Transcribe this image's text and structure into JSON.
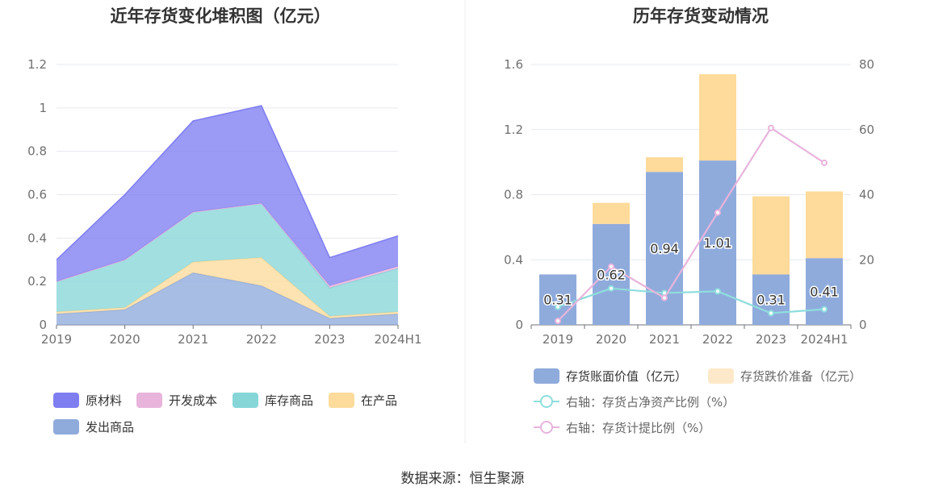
{
  "source_text": "数据来源：恒生聚源",
  "chart_data": [
    {
      "type": "area",
      "stacked": true,
      "title": "近年存货变化堆积图（亿元）",
      "categories": [
        "2019",
        "2020",
        "2021",
        "2022",
        "2023",
        "2024H1"
      ],
      "y_ticks": [
        "0",
        "0.2",
        "0.4",
        "0.6",
        "0.8",
        "1",
        "1.2"
      ],
      "ylim": [
        0,
        1.2
      ],
      "grid": true,
      "legend_position": "bottom",
      "series": [
        {
          "name": "发出商品",
          "color": "#8fabdc",
          "values": [
            0.05,
            0.07,
            0.24,
            0.18,
            0.03,
            0.05
          ]
        },
        {
          "name": "在产品",
          "color": "#fddb9b",
          "values": [
            0.01,
            0.01,
            0.05,
            0.13,
            0.01,
            0.01
          ]
        },
        {
          "name": "库存商品",
          "color": "#86d6d8",
          "values": [
            0.14,
            0.22,
            0.23,
            0.25,
            0.13,
            0.2
          ]
        },
        {
          "name": "开发成本",
          "color": "#e8b4dc",
          "values": [
            0.0,
            0.0,
            0.0,
            0.0,
            0.01,
            0.01
          ]
        },
        {
          "name": "原材料",
          "color": "#7f7ef1",
          "values": [
            0.1,
            0.3,
            0.42,
            0.45,
            0.13,
            0.14
          ]
        }
      ],
      "legend_order": [
        "原材料",
        "开发成本",
        "库存商品",
        "在产品",
        "发出商品"
      ]
    },
    {
      "type": "bar+line",
      "title": "历年存货变动情况",
      "categories": [
        "2019",
        "2020",
        "2021",
        "2022",
        "2023",
        "2024H1"
      ],
      "y_left_ticks": [
        "0",
        "0.4",
        "0.8",
        "1.2",
        "1.6"
      ],
      "y_left_lim": [
        0,
        1.6
      ],
      "y_right_ticks": [
        "0",
        "20",
        "40",
        "60",
        "80"
      ],
      "y_right_lim": [
        0,
        80
      ],
      "grid": true,
      "legend_position": "bottom",
      "bars": [
        {
          "name": "存货账面价值（亿元）",
          "color": "#8fabdc",
          "values": [
            0.31,
            0.62,
            0.94,
            1.01,
            0.31,
            0.41
          ],
          "labels": [
            "0.31",
            "0.62",
            "0.94",
            "1.01",
            "0.31",
            "0.41"
          ]
        },
        {
          "name": "存货跌价准备（亿元）",
          "color": "#fedb9b",
          "legend_color": "#fde9c9",
          "values": [
            0.0,
            0.13,
            0.09,
            0.53,
            0.48,
            0.41
          ]
        }
      ],
      "lines": [
        {
          "name": "右轴：存货占净资产比例（%）",
          "color": "#8fdddd",
          "axis": "right",
          "values": [
            5.5,
            11.2,
            9.8,
            10.3,
            3.6,
            4.8
          ]
        },
        {
          "name": "右轴：存货计提比例（%）",
          "color": "#e8b4dc",
          "axis": "right",
          "values": [
            1.2,
            17.9,
            8.3,
            34.5,
            60.5,
            49.8
          ]
        }
      ]
    }
  ]
}
